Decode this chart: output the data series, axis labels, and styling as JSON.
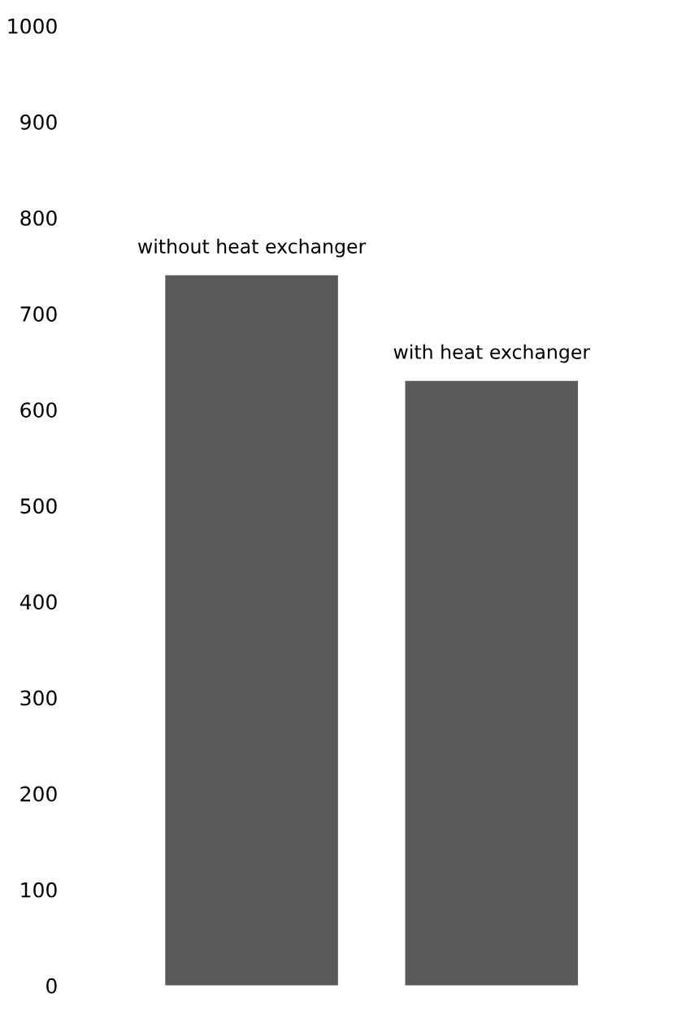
{
  "chart_data": {
    "type": "bar",
    "categories": [
      null,
      null
    ],
    "values": [
      740,
      630
    ],
    "colors": [
      "#5a5a5a",
      "#5a5a5a"
    ],
    "ylim": [
      0,
      1000
    ],
    "yticks": [
      0,
      100,
      200,
      300,
      400,
      500,
      600,
      700,
      800,
      900,
      1000
    ],
    "grid": false,
    "annotations": [
      "without heat exchanger",
      "with heat exchanger"
    ]
  }
}
